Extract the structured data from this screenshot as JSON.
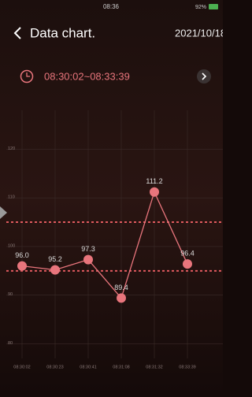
{
  "status_bar": {
    "time": "08:36",
    "battery": "92%"
  },
  "header": {
    "title": "Data chart.",
    "date": "2021/10/18"
  },
  "time_range": "08:30:02~08:33:39",
  "chart_data": {
    "type": "line",
    "categories": [
      "08:30:02",
      "08:30:23",
      "08:30:41",
      "08:31:08",
      "08:31:32",
      "08:33:39"
    ],
    "values": [
      96.0,
      95.2,
      97.3,
      89.4,
      111.2,
      96.4
    ],
    "value_labels": [
      "96.0",
      "95.2",
      "97.3",
      "89.4",
      "111.2",
      "96.4"
    ],
    "color": "#e8757c",
    "ylim": [
      77,
      128
    ],
    "yticks": [
      80,
      90,
      100,
      110,
      120
    ],
    "reference_lines": [
      105,
      95
    ],
    "reference_color": "#e05a5e",
    "grid": true
  }
}
